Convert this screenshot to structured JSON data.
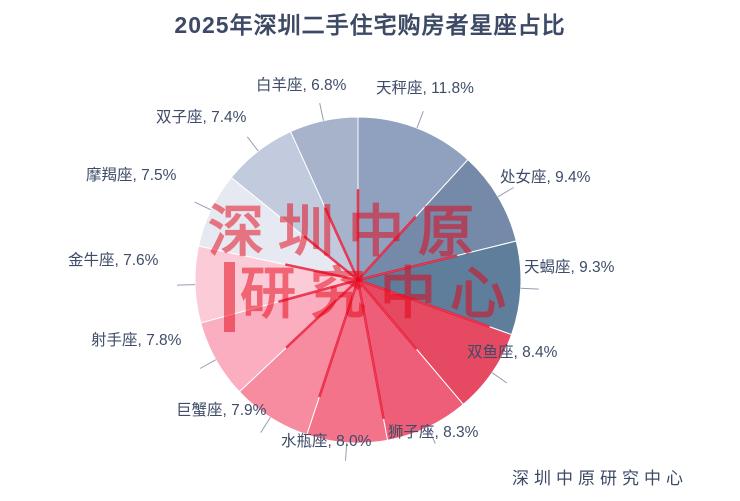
{
  "title": "2025年深圳二手住宅购房者星座占比",
  "source": "深圳中原研究中心",
  "watermark": {
    "line1": "深圳中原",
    "line2": "研究中心",
    "color": "#E60012"
  },
  "colors": {
    "title_text": "#3D4A66",
    "label_text": "#3F4C68",
    "leader_line": "#8893A8",
    "watermark_red": "#E60012",
    "center_ray_red": "#E8102E",
    "background": "#FFFFFF"
  },
  "chart_data": {
    "type": "pie",
    "title": "2025年深圳二手住宅购房者星座占比",
    "categories": [
      "天秤座",
      "处女座",
      "天蝎座",
      "双鱼座",
      "狮子座",
      "水瓶座",
      "巨蟹座",
      "射手座",
      "金牛座",
      "摩羯座",
      "双子座",
      "白羊座"
    ],
    "values": [
      11.8,
      9.4,
      9.3,
      8.4,
      8.3,
      8.0,
      7.9,
      7.8,
      7.6,
      7.5,
      7.4,
      6.8
    ],
    "slice_colors": [
      "#8FA1BE",
      "#7589A8",
      "#5E7E9B",
      "#E64A62",
      "#EE5E78",
      "#F3738B",
      "#F78CA1",
      "#FAAEC0",
      "#FBCBD7",
      "#E7E9F2",
      "#C2CBDD",
      "#A6B3CB"
    ],
    "label_format": "{name}, {value}%",
    "labels_position": "outside",
    "start_angle_deg": 0,
    "direction": "clockwise",
    "legend": "none",
    "source_note": "深圳中原研究中心"
  }
}
